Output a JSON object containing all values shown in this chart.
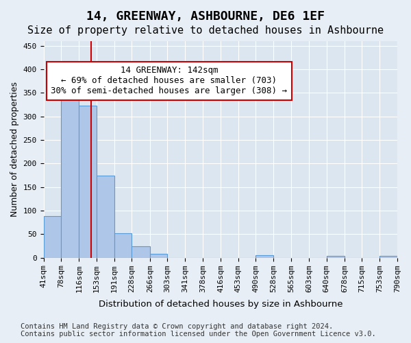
{
  "title": "14, GREENWAY, ASHBOURNE, DE6 1EF",
  "subtitle": "Size of property relative to detached houses in Ashbourne",
  "xlabel": "Distribution of detached houses by size in Ashbourne",
  "ylabel": "Number of detached properties",
  "bar_edges": [
    41,
    78,
    116,
    153,
    191,
    228,
    266,
    303,
    341,
    378,
    416,
    453,
    490,
    528,
    565,
    603,
    640,
    678,
    715,
    753,
    790
  ],
  "bar_heights": [
    88,
    348,
    323,
    174,
    52,
    24,
    8,
    0,
    0,
    0,
    0,
    0,
    5,
    0,
    0,
    0,
    4,
    0,
    0,
    4
  ],
  "bar_color": "#aec6e8",
  "bar_edgecolor": "#5b9bd5",
  "property_size": 142,
  "vline_color": "#cc0000",
  "annotation_text": "14 GREENWAY: 142sqm\n← 69% of detached houses are smaller (703)\n30% of semi-detached houses are larger (308) →",
  "annotation_box_color": "#ffffff",
  "annotation_box_edgecolor": "#cc0000",
  "ylim": [
    0,
    460
  ],
  "yticks": [
    0,
    50,
    100,
    150,
    200,
    250,
    300,
    350,
    400,
    450
  ],
  "bg_color": "#e8eef5",
  "plot_bg_color": "#dce6f0",
  "footer_text": "Contains HM Land Registry data © Crown copyright and database right 2024.\nContains public sector information licensed under the Open Government Licence v3.0.",
  "title_fontsize": 13,
  "subtitle_fontsize": 11,
  "label_fontsize": 9,
  "tick_fontsize": 8,
  "footer_fontsize": 7.5
}
